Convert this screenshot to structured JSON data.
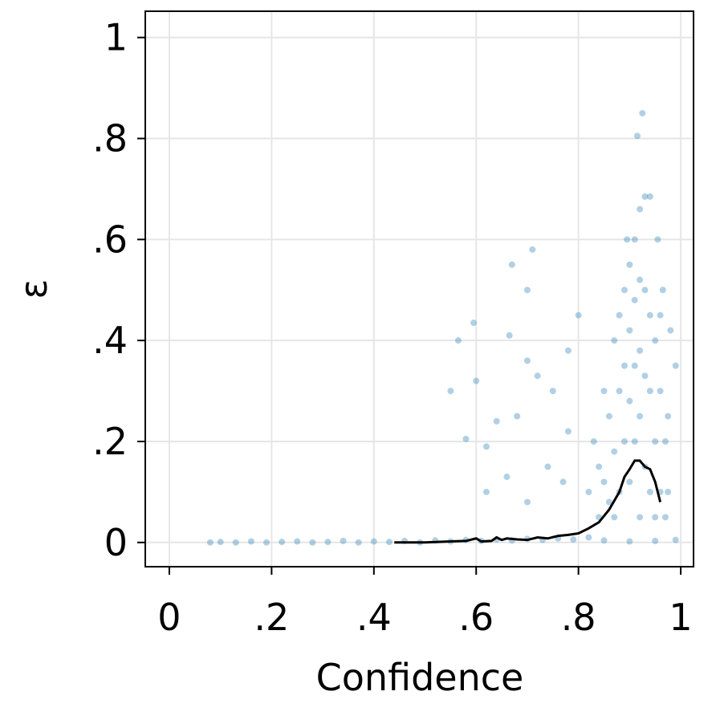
{
  "chart_data": {
    "type": "scatter",
    "xlabel": "Confidence",
    "ylabel": "ε",
    "xlim": [
      -0.047,
      1.025
    ],
    "ylim": [
      -0.048,
      1.052
    ],
    "xticks": [
      0,
      {
        "value": 0.2,
        "label": ".2"
      },
      {
        "value": 0.4,
        "label": ".4"
      },
      {
        "value": 0.6,
        "label": ".6"
      },
      {
        "value": 0.8,
        "label": ".8"
      },
      1
    ],
    "yticks": [
      0,
      {
        "value": 0.2,
        "label": ".2"
      },
      {
        "value": 0.4,
        "label": ".4"
      },
      {
        "value": 0.6,
        "label": ".6"
      },
      {
        "value": 0.8,
        "label": ".8"
      },
      1
    ],
    "grid": true,
    "points": {
      "color": "#1f77b4",
      "x": [
        0.08,
        0.1,
        0.13,
        0.16,
        0.19,
        0.22,
        0.25,
        0.28,
        0.31,
        0.34,
        0.37,
        0.4,
        0.43,
        0.46,
        0.49,
        0.52,
        0.55,
        0.58,
        0.61,
        0.64,
        0.67,
        0.7,
        0.73,
        0.76,
        0.79,
        0.82,
        0.85,
        0.9,
        0.95,
        0.99,
        0.925,
        0.915,
        0.93,
        0.94,
        0.92,
        0.91,
        0.895,
        0.955,
        0.67,
        0.71,
        0.7,
        0.595,
        0.565,
        0.665,
        0.6,
        0.55,
        0.58,
        0.62,
        0.64,
        0.7,
        0.72,
        0.75,
        0.78,
        0.78,
        0.8,
        0.77,
        0.74,
        0.68,
        0.66,
        0.62,
        0.7,
        0.97,
        0.975,
        0.99,
        0.98,
        0.975,
        0.965,
        0.96,
        0.83,
        0.84,
        0.85,
        0.85,
        0.86,
        0.86,
        0.87,
        0.87,
        0.87,
        0.88,
        0.88,
        0.88,
        0.89,
        0.89,
        0.89,
        0.9,
        0.9,
        0.9,
        0.9,
        0.91,
        0.91,
        0.91,
        0.92,
        0.92,
        0.92,
        0.93,
        0.93,
        0.93,
        0.94,
        0.94,
        0.94,
        0.95,
        0.95,
        0.96,
        0.96,
        0.97,
        0.84,
        0.82,
        0.92,
        0.95
      ],
      "y": [
        0,
        0.001,
        0,
        0.002,
        0,
        0.001,
        0.002,
        0,
        0.001,
        0.003,
        0,
        0.002,
        0.001,
        0.003,
        0,
        0.004,
        0.002,
        0.005,
        0.003,
        0.006,
        0.004,
        0.007,
        0.005,
        0.008,
        0.006,
        0.01,
        0.004,
        0.002,
        0.003,
        0.005,
        0.85,
        0.805,
        0.685,
        0.685,
        0.66,
        0.6,
        0.6,
        0.6,
        0.55,
        0.58,
        0.5,
        0.435,
        0.4,
        0.41,
        0.32,
        0.3,
        0.205,
        0.19,
        0.24,
        0.36,
        0.33,
        0.3,
        0.22,
        0.38,
        0.45,
        0.12,
        0.15,
        0.25,
        0.13,
        0.1,
        0.08,
        0.2,
        0.1,
        0.35,
        0.42,
        0.25,
        0.5,
        0.45,
        0.2,
        0.05,
        0.3,
        0.12,
        0.25,
        0.08,
        0.4,
        0.18,
        0.05,
        0.45,
        0.3,
        0.1,
        0.5,
        0.35,
        0.2,
        0.55,
        0.42,
        0.28,
        0.12,
        0.48,
        0.35,
        0.2,
        0.52,
        0.38,
        0.25,
        0.5,
        0.33,
        0.15,
        0.45,
        0.3,
        0.1,
        0.4,
        0.2,
        0.3,
        0.1,
        0.05,
        0.15,
        0.1,
        0.05,
        0.05
      ]
    },
    "line": {
      "color": "#000000",
      "x": [
        0.44,
        0.5,
        0.55,
        0.58,
        0.6,
        0.61,
        0.63,
        0.64,
        0.65,
        0.66,
        0.68,
        0.7,
        0.72,
        0.74,
        0.76,
        0.78,
        0.8,
        0.82,
        0.84,
        0.86,
        0.88,
        0.89,
        0.9,
        0.91,
        0.92,
        0.93,
        0.94,
        0.95,
        0.96
      ],
      "y": [
        0,
        0,
        0.002,
        0.003,
        0.008,
        0.002,
        0.003,
        0.01,
        0.005,
        0.008,
        0.006,
        0.005,
        0.01,
        0.008,
        0.013,
        0.015,
        0.018,
        0.028,
        0.04,
        0.065,
        0.1,
        0.13,
        0.145,
        0.162,
        0.162,
        0.15,
        0.145,
        0.12,
        0.08
      ]
    }
  }
}
